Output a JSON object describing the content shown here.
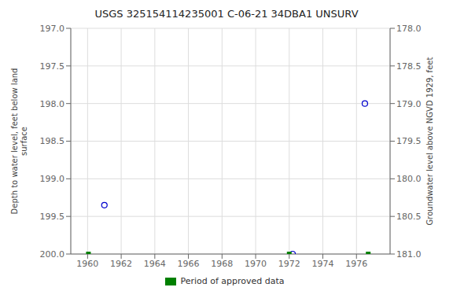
{
  "chart_data": {
    "type": "scatter",
    "title": "USGS 325154114235001 C-06-21 34DBA1 UNSURV",
    "ylabel": "Depth to water level, feet below land\nsurface",
    "y2label": "Groundwater level above NGVD 1929, feet",
    "xlim": [
      1959,
      1978
    ],
    "ylim": [
      200.0,
      197.0
    ],
    "y2lim": [
      181.0,
      178.0
    ],
    "xticks": [
      1960,
      1962,
      1964,
      1966,
      1968,
      1970,
      1972,
      1974,
      1976
    ],
    "yticks": [
      {
        "value": 197.0,
        "label": "197.0"
      },
      197.5,
      {
        "value": 198.0,
        "label": "198.0"
      },
      198.5,
      {
        "value": 199.0,
        "label": "199.0"
      },
      199.5,
      {
        "value": 200.0,
        "label": "200.0"
      }
    ],
    "y2ticks": [
      {
        "value": 181.0,
        "label": "181.0"
      },
      180.5,
      {
        "value": 180.0,
        "label": "180.0"
      },
      179.5,
      {
        "value": 179.0,
        "label": "179.0"
      },
      178.5,
      {
        "value": 178.0,
        "label": "178.0"
      }
    ],
    "grid": true,
    "legend": "bottom",
    "series": [
      {
        "color": "#0000cc",
        "marker": "circle",
        "x": [
          1961.0,
          1972.2,
          1976.5
        ],
        "values": [
          199.35,
          200.0,
          198.0
        ]
      },
      {
        "name": "Period of approved data",
        "color": "#008000",
        "marker": "square",
        "x": [
          1960.05,
          1972.0,
          1976.7
        ],
        "values": [
          200.0,
          200.0,
          200.0
        ]
      }
    ]
  }
}
